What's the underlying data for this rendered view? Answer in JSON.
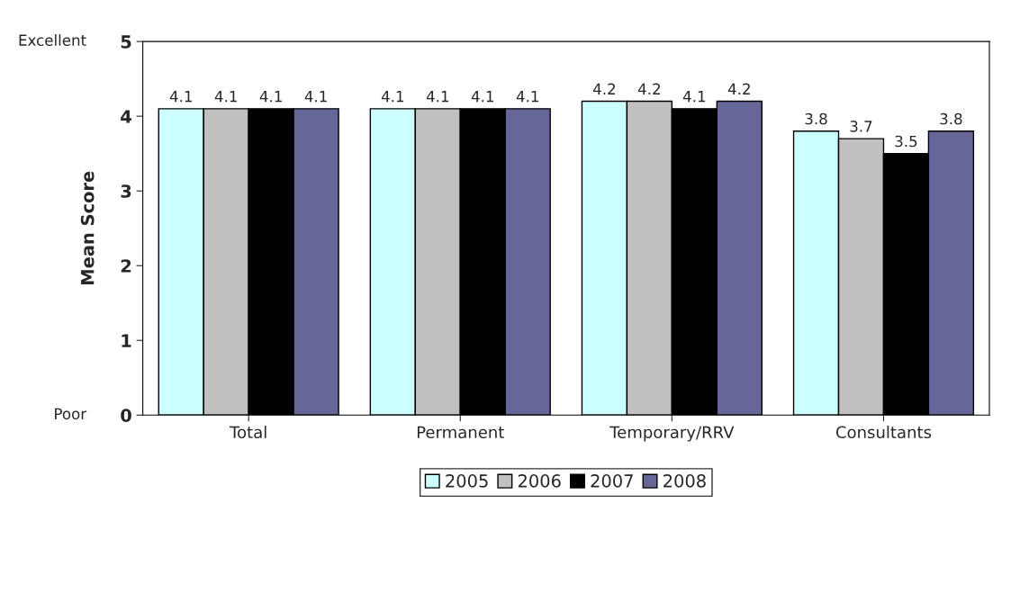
{
  "chart_data": {
    "type": "bar",
    "ylabel": "Mean Score",
    "categories": [
      "Total",
      "Permanent",
      "Temporary/RRV",
      "Consultants"
    ],
    "series": [
      {
        "name": "2005",
        "color": "#ccffff",
        "values": [
          4.1,
          4.1,
          4.2,
          3.8
        ]
      },
      {
        "name": "2006",
        "color": "#c0c0c0",
        "values": [
          4.1,
          4.1,
          4.2,
          3.7
        ]
      },
      {
        "name": "2007",
        "color": "#000000",
        "values": [
          4.1,
          4.1,
          4.1,
          3.5
        ]
      },
      {
        "name": "2008",
        "color": "#666699",
        "values": [
          4.1,
          4.1,
          4.2,
          3.8
        ]
      }
    ],
    "ylim": [
      0,
      5
    ],
    "yticks": [
      0,
      1,
      2,
      3,
      4,
      5
    ],
    "data_labels": true,
    "legend": "bottom",
    "grid": false,
    "annotations": [
      "Excellent",
      "Poor"
    ]
  }
}
